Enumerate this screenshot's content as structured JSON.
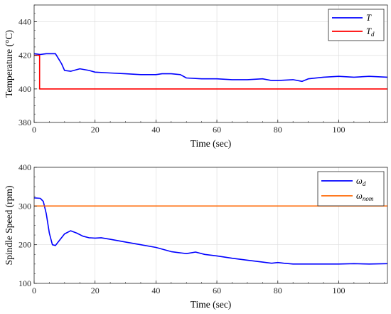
{
  "chart_data": [
    {
      "type": "line",
      "xlabel": "Time (sec)",
      "ylabel": "Temperature (°C)",
      "xlim": [
        0,
        116
      ],
      "ylim": [
        380,
        450
      ],
      "xticks": [
        0,
        20,
        40,
        60,
        80,
        100
      ],
      "xtick_labels": [
        "0",
        "20",
        "40",
        "60",
        "80",
        "100"
      ],
      "yticks": [
        380,
        400,
        420,
        440
      ],
      "ytick_labels": [
        "380",
        "400",
        "420",
        "440"
      ],
      "grid": true,
      "legend_position": "top-right",
      "series": [
        {
          "name": "T",
          "color": "#0000ff",
          "x": [
            0,
            2,
            4,
            5,
            7,
            8,
            9,
            10,
            12,
            15,
            18,
            20,
            25,
            30,
            35,
            40,
            42,
            45,
            48,
            50,
            55,
            60,
            65,
            70,
            75,
            78,
            80,
            85,
            88,
            90,
            95,
            100,
            105,
            110,
            116
          ],
          "y": [
            421,
            420.5,
            421,
            421,
            421,
            418,
            415,
            411,
            410.5,
            412,
            411,
            410,
            409.5,
            409,
            408.5,
            408.5,
            409,
            409,
            408.5,
            406.5,
            406,
            406,
            405.5,
            405.5,
            406,
            405,
            405,
            405.5,
            404.5,
            406,
            407,
            407.5,
            407,
            407.5,
            407
          ]
        },
        {
          "name": "T_d",
          "color": "#ff0000",
          "x": [
            0,
            1.8,
            1.8,
            116
          ],
          "y": [
            420,
            420,
            400,
            400
          ]
        }
      ],
      "legend": [
        {
          "main": "T",
          "sub": ""
        },
        {
          "main": "T",
          "sub": "d"
        }
      ]
    },
    {
      "type": "line",
      "xlabel": "Time (sec)",
      "ylabel": "Spindle Speed (rpm)",
      "xlim": [
        0,
        116
      ],
      "ylim": [
        100,
        400
      ],
      "xticks": [
        0,
        20,
        40,
        60,
        80,
        100
      ],
      "xtick_labels": [
        "0",
        "20",
        "40",
        "60",
        "80",
        "100"
      ],
      "yticks": [
        100,
        200,
        300,
        400
      ],
      "ytick_labels": [
        "100",
        "200",
        "300",
        "400"
      ],
      "grid": true,
      "legend_position": "top-right",
      "series": [
        {
          "name": "ω_d",
          "color": "#0000ff",
          "x": [
            0,
            2,
            3,
            4,
            5,
            6,
            7,
            8,
            10,
            12,
            14,
            16,
            18,
            20,
            22,
            25,
            30,
            35,
            40,
            45,
            50,
            53,
            56,
            60,
            65,
            70,
            75,
            78,
            80,
            82,
            85,
            90,
            95,
            100,
            105,
            110,
            116
          ],
          "y": [
            321,
            320,
            312,
            280,
            230,
            200,
            198,
            208,
            228,
            236,
            230,
            222,
            218,
            217,
            218,
            214,
            207,
            200,
            193,
            182,
            177,
            181,
            175,
            171,
            165,
            160,
            155,
            152,
            154,
            152,
            150,
            150,
            150,
            150,
            151,
            150,
            151
          ]
        },
        {
          "name": "ω_nom",
          "color": "#ff6600",
          "x": [
            0,
            116
          ],
          "y": [
            300,
            300
          ]
        }
      ],
      "legend": [
        {
          "main": "ω",
          "sub": "d"
        },
        {
          "main": "ω",
          "sub": "nom"
        }
      ]
    }
  ]
}
